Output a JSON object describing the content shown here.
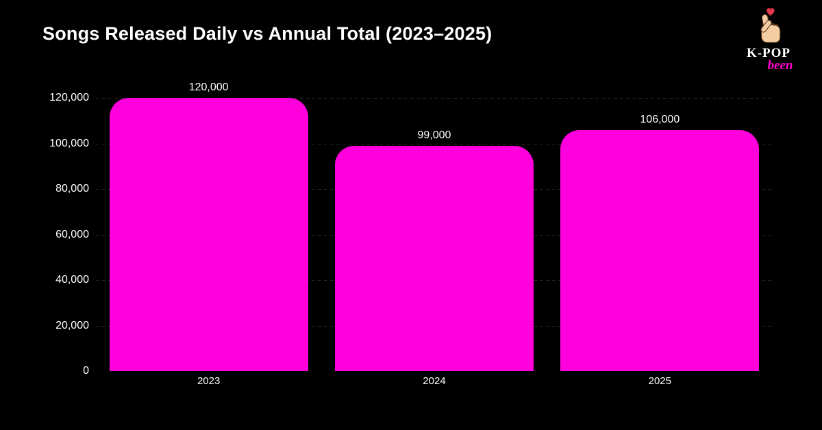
{
  "header": {
    "title": "Songs Released Daily vs Annual Total (2023–2025)"
  },
  "logo": {
    "line1": "K-POP",
    "line2": "been",
    "icon": "finger-heart-icon",
    "kpop_color": "#ffffff",
    "been_color": "#ff00cc",
    "heart_color": "#e4394b",
    "hand_color": "#f5cda3"
  },
  "chart_data": {
    "type": "bar",
    "title": "Songs Released Daily vs Annual Total (2023–2025)",
    "categories": [
      "2023",
      "2024",
      "2025"
    ],
    "values": [
      120000,
      99000,
      106000
    ],
    "value_labels": [
      "120,000",
      "99,000",
      "106,000"
    ],
    "y_ticks": [
      0,
      20000,
      40000,
      60000,
      80000,
      100000,
      120000
    ],
    "y_tick_labels": [
      "0",
      "20,000",
      "40,000",
      "60,000",
      "80,000",
      "100,000",
      "120,000"
    ],
    "ylim": [
      0,
      120000
    ],
    "xlabel": "",
    "ylabel": "",
    "legend": "none",
    "grid": "horizontal-dashed",
    "bar_color": "#ff00dc",
    "gridline_color": "#272727",
    "background_color": "#000000",
    "text_color": "#ffffff"
  }
}
